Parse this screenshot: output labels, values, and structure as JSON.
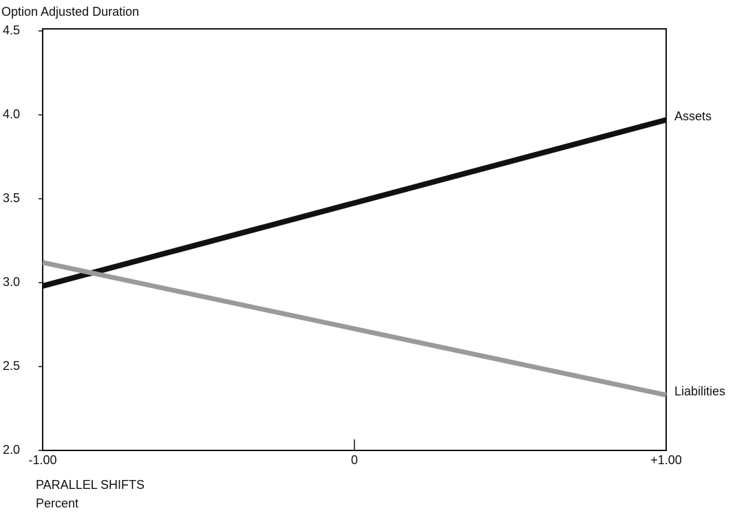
{
  "chart_data": {
    "type": "line",
    "y_label": "Option Adjusted Duration",
    "x_label": [
      "PARALLEL SHIFTS",
      "Percent"
    ],
    "x": [
      -1,
      1
    ],
    "series": [
      {
        "name": "Assets",
        "color": "#111111",
        "values": [
          2.98,
          3.97
        ]
      },
      {
        "name": "Liabilities",
        "color": "#9a9a9a",
        "values": [
          3.12,
          2.33
        ]
      }
    ],
    "xlim": [
      -1,
      1
    ],
    "xticks": [
      {
        "value": -1,
        "label": "-1.00"
      },
      0,
      {
        "value": 1,
        "label": "+1.00"
      }
    ],
    "ylim": [
      2,
      4.5
    ],
    "yticks": [
      {
        "value": 2,
        "label": "2.0"
      },
      {
        "value": 2.5,
        "label": "2.5"
      },
      {
        "value": 3,
        "label": "3.0"
      },
      {
        "value": 3.5,
        "label": "3.5"
      },
      {
        "value": 4,
        "label": "4.0"
      },
      {
        "value": 4.5,
        "label": "4.5"
      }
    ],
    "grid": false
  }
}
